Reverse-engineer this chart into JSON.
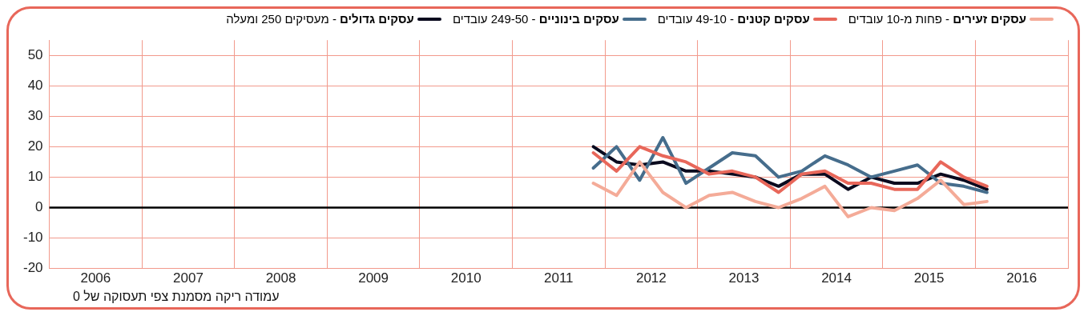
{
  "chart_data": {
    "type": "line",
    "annotations": [
      "עמודה ריקה מסמנת צפי תעסוקה של 0"
    ],
    "x": [
      2011.375,
      2011.625,
      2011.875,
      2012.125,
      2012.375,
      2012.625,
      2012.875,
      2013.125,
      2013.375,
      2013.625,
      2013.875,
      2014.125,
      2014.375,
      2014.625,
      2014.875,
      2015.125,
      2015.375,
      2015.625
    ],
    "series": [
      {
        "name": "עסקים זעירים - פחות מ-10 עובדים",
        "color": "#f4ab98",
        "values": [
          8,
          4,
          15,
          5,
          0,
          4,
          5,
          2,
          0,
          3,
          7,
          -3,
          0,
          -1,
          3,
          9,
          1,
          2
        ]
      },
      {
        "name": "עסקים קטנים - 49-10 עובדים",
        "color": "#e8675a",
        "values": [
          18,
          12,
          20,
          17,
          15,
          11,
          12,
          10,
          5,
          11,
          12,
          8,
          8,
          6,
          6,
          15,
          10,
          7
        ]
      },
      {
        "name": "עסקים בינוניים - 249-50 עובדים",
        "color": "#466d8c",
        "values": [
          13,
          20,
          9,
          23,
          8,
          13,
          18,
          17,
          10,
          12,
          17,
          14,
          10,
          12,
          14,
          8,
          7,
          5
        ]
      },
      {
        "name": "עסקים גדולים - מעסיקים 250 ומעלה",
        "color": "#0a0a1e",
        "values": [
          20,
          15,
          14,
          15,
          12,
          12,
          11,
          10,
          7,
          11,
          11,
          6,
          10,
          8,
          8,
          11,
          9,
          6
        ]
      }
    ],
    "xlim": [
      2005.5,
      2016.5
    ],
    "xticks": [
      {
        "value": 2005.5,
        "label": null
      },
      2006,
      {
        "value": 2006.5,
        "label": null
      },
      2007,
      {
        "value": 2007.5,
        "label": null
      },
      2008,
      {
        "value": 2008.5,
        "label": null
      },
      2009,
      {
        "value": 2009.5,
        "label": null
      },
      2010,
      {
        "value": 2010.5,
        "label": null
      },
      2011,
      {
        "value": 2011.5,
        "label": null
      },
      2012,
      {
        "value": 2012.5,
        "label": null
      },
      2013,
      {
        "value": 2013.5,
        "label": null
      },
      2014,
      {
        "value": 2014.5,
        "label": null
      },
      2015,
      {
        "value": 2015.5,
        "label": null
      },
      2016,
      {
        "value": 2016.5,
        "label": null
      }
    ],
    "ylim": [
      -20,
      55
    ],
    "yticks": [
      -20,
      -10,
      0,
      10,
      20,
      30,
      40,
      50
    ],
    "ref_lines": [
      {
        "axis": "y",
        "value": 0,
        "color": "#000000"
      }
    ],
    "grid": true,
    "legend": "top",
    "marker": "none",
    "line_style": "solid"
  }
}
